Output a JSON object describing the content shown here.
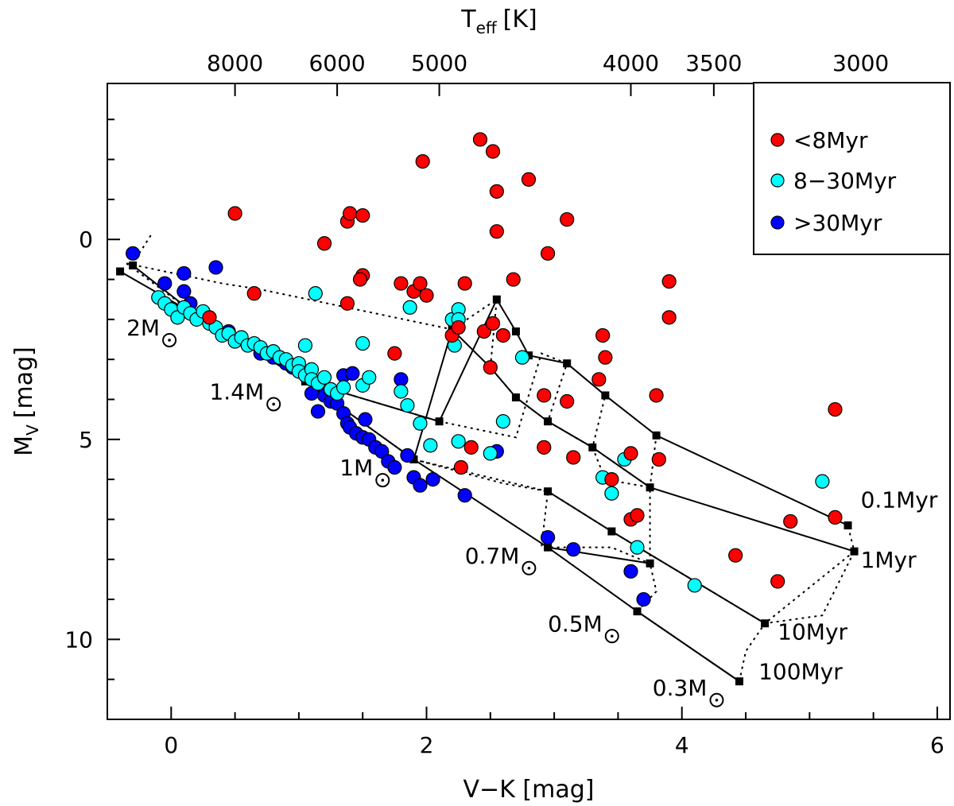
{
  "chart_data": {
    "type": "scatter",
    "title": "",
    "xlabel": "V−K [mag]",
    "ylabel_main": "M",
    "ylabel_sub": "V",
    "ylabel_unit": "[mag]",
    "top_xlabel_main": "T",
    "top_xlabel_sub": "eff",
    "top_xlabel_unit": "[K]",
    "xlim": [
      -0.5,
      6.1
    ],
    "ylim": [
      12.0,
      -3.9
    ],
    "x_ticks": [
      0,
      2,
      4,
      6
    ],
    "x_tick_labels": [
      "0",
      "2",
      "4",
      "6"
    ],
    "y_ticks": [
      0,
      5,
      10
    ],
    "y_tick_labels": [
      "0",
      "5",
      "10"
    ],
    "x_minor_step": 0.5,
    "y_minor_step": 1,
    "top_ticks": [
      {
        "label": "8000",
        "vk": 0.5
      },
      {
        "label": "6000",
        "vk": 1.3
      },
      {
        "label": "5000",
        "vk": 2.1
      },
      {
        "label": "4000",
        "vk": 3.6
      },
      {
        "label": "3500",
        "vk": 4.25
      },
      {
        "label": "3000",
        "vk": 5.4
      }
    ],
    "legend": {
      "position": "top-right",
      "entries": [
        {
          "label": "<8Myr",
          "color": "#ff0000"
        },
        {
          "label": "8−30Myr",
          "color": "#00ffff"
        },
        {
          "label": ">30Myr",
          "color": "#0000ff"
        }
      ]
    },
    "mass_tracks": [
      {
        "label": "2M",
        "points": [
          [
            -0.3,
            0.65
          ],
          [
            0.2,
            1.9
          ]
        ]
      },
      {
        "label": "1.4M",
        "points": [
          [
            1.05,
            3.55
          ],
          [
            2.1,
            4.55
          ],
          [
            2.55,
            1.5
          ],
          [
            2.7,
            2.3
          ],
          [
            2.8,
            2.9
          ],
          [
            3.1,
            3.1
          ],
          [
            3.4,
            3.9
          ],
          [
            3.8,
            4.9
          ],
          [
            5.3,
            7.15
          ]
        ]
      },
      {
        "label": "1M",
        "points": [
          [
            1.9,
            5.5
          ],
          [
            2.2,
            2.25
          ],
          [
            2.5,
            3.2
          ],
          [
            2.7,
            3.95
          ],
          [
            2.95,
            4.55
          ],
          [
            3.3,
            5.2
          ],
          [
            3.75,
            6.2
          ],
          [
            5.35,
            7.8
          ]
        ]
      },
      {
        "label": "0.7M",
        "points": [
          [
            2.95,
            6.3
          ],
          [
            3.45,
            7.3
          ],
          [
            4.65,
            9.6
          ]
        ]
      },
      {
        "label": "0.5M",
        "points": [
          [
            2.95,
            7.7
          ],
          [
            3.75,
            8.1
          ]
        ]
      },
      {
        "label": "0.3M",
        "points": [
          [
            3.65,
            9.3
          ],
          [
            4.45,
            11.05
          ]
        ]
      }
    ],
    "main_sequence_line": [
      [
        -0.4,
        0.8
      ],
      [
        0.2,
        1.9
      ],
      [
        1.05,
        3.55
      ],
      [
        1.9,
        5.5
      ],
      [
        2.95,
        7.7
      ],
      [
        3.65,
        9.3
      ],
      [
        4.45,
        11.05
      ]
    ],
    "isochrones": [
      {
        "label": "0.1Myr",
        "points": [
          [
            -0.35,
            0.6
          ],
          [
            0.2,
            1.9
          ],
          [
            1.05,
            3.55
          ],
          [
            1.9,
            5.5
          ],
          [
            2.95,
            6.3
          ],
          [
            3.45,
            7.3
          ],
          [
            4.65,
            9.6
          ],
          [
            5.35,
            7.8
          ],
          [
            5.3,
            7.15
          ]
        ]
      },
      {
        "label": "1Myr",
        "points": [
          [
            -0.25,
            0.35
          ],
          [
            -0.15,
            -0.15
          ]
        ]
      },
      {
        "label": "10Myr",
        "points": [
          [
            -0.35,
            0.6
          ],
          [
            0.4,
            1.1
          ],
          [
            0.7,
            1.25
          ],
          [
            2.2,
            2.25
          ],
          [
            2.55,
            1.5
          ],
          [
            2.5,
            3.2
          ],
          [
            2.7,
            3.95
          ],
          [
            2.95,
            4.55
          ],
          [
            3.3,
            5.2
          ],
          [
            3.75,
            6.2
          ],
          [
            3.8,
            4.9
          ]
        ]
      },
      {
        "label": "100Myr",
        "points": [
          [
            1.05,
            3.55
          ],
          [
            2.1,
            4.55
          ],
          [
            2.7,
            4.95
          ],
          [
            2.9,
            2.85
          ],
          [
            3.1,
            3.1
          ],
          [
            2.95,
            4.55
          ]
        ]
      },
      {
        "label": "ms_dotted_1",
        "points": [
          [
            1.9,
            5.5
          ],
          [
            2.6,
            6.1
          ],
          [
            2.95,
            6.3
          ],
          [
            2.9,
            7.7
          ],
          [
            3.45,
            7.7
          ],
          [
            3.75,
            8.1
          ]
        ]
      },
      {
        "label": "ms_dotted_2",
        "points": [
          [
            3.65,
            9.3
          ],
          [
            3.8,
            8.8
          ],
          [
            3.75,
            8.1
          ],
          [
            3.75,
            6.2
          ],
          [
            3.4,
            6.0
          ],
          [
            3.3,
            5.2
          ],
          [
            3.4,
            3.9
          ]
        ]
      },
      {
        "label": "ms_dotted_3",
        "points": [
          [
            4.45,
            11.05
          ],
          [
            4.5,
            10.3
          ],
          [
            4.65,
            9.6
          ],
          [
            5.1,
            9.4
          ],
          [
            5.35,
            7.8
          ]
        ]
      }
    ],
    "isochrone_labels": [
      {
        "label": "0.1Myr",
        "vk": 5.4,
        "mv": 6.7
      },
      {
        "label": "1Myr",
        "vk": 5.4,
        "mv": 8.2
      },
      {
        "label": "10Myr",
        "vk": 4.75,
        "mv": 10.0
      },
      {
        "label": "100Myr",
        "vk": 4.6,
        "mv": 11.0
      }
    ],
    "mass_labels": [
      {
        "label": "2M",
        "vk": -0.35,
        "mv": 2.4
      },
      {
        "label": "1.4M",
        "vk": 0.3,
        "mv": 4.0
      },
      {
        "label": "1M",
        "vk": 1.32,
        "mv": 5.9
      },
      {
        "label": "0.7M",
        "vk": 2.3,
        "mv": 8.1
      },
      {
        "label": "0.5M",
        "vk": 2.95,
        "mv": 9.8
      },
      {
        "label": "0.3M",
        "vk": 3.77,
        "mv": 11.4
      }
    ],
    "series": [
      {
        "name": "<8Myr",
        "color": "#ff0000",
        "points": [
          [
            0.5,
            -0.65
          ],
          [
            0.65,
            1.35
          ],
          [
            0.3,
            1.95
          ],
          [
            1.2,
            0.1
          ],
          [
            1.38,
            1.6
          ],
          [
            1.38,
            -0.45
          ],
          [
            1.4,
            -0.65
          ],
          [
            1.5,
            -0.6
          ],
          [
            1.5,
            0.9
          ],
          [
            1.48,
            1.0
          ],
          [
            1.75,
            2.85
          ],
          [
            1.8,
            1.1
          ],
          [
            1.9,
            1.3
          ],
          [
            1.95,
            1.1
          ],
          [
            1.97,
            -1.95
          ],
          [
            2.0,
            1.4
          ],
          [
            2.2,
            2.4
          ],
          [
            2.25,
            2.2
          ],
          [
            2.3,
            1.1
          ],
          [
            2.35,
            5.2
          ],
          [
            2.27,
            5.7
          ],
          [
            2.42,
            -2.5
          ],
          [
            2.45,
            2.3
          ],
          [
            2.5,
            3.2
          ],
          [
            2.52,
            2.1
          ],
          [
            2.52,
            -2.2
          ],
          [
            2.55,
            -1.2
          ],
          [
            2.55,
            -0.2
          ],
          [
            2.6,
            2.4
          ],
          [
            2.68,
            1.0
          ],
          [
            2.8,
            -1.5
          ],
          [
            2.92,
            3.9
          ],
          [
            2.92,
            5.2
          ],
          [
            2.95,
            0.35
          ],
          [
            3.1,
            -0.5
          ],
          [
            3.1,
            4.05
          ],
          [
            3.15,
            5.45
          ],
          [
            3.35,
            3.5
          ],
          [
            3.38,
            2.4
          ],
          [
            3.4,
            2.95
          ],
          [
            3.45,
            6.0
          ],
          [
            3.6,
            5.35
          ],
          [
            3.6,
            7.0
          ],
          [
            3.65,
            6.9
          ],
          [
            3.8,
            3.9
          ],
          [
            3.82,
            5.5
          ],
          [
            3.9,
            1.05
          ],
          [
            3.9,
            1.95
          ],
          [
            4.42,
            7.9
          ],
          [
            4.75,
            8.55
          ],
          [
            4.85,
            7.05
          ],
          [
            5.2,
            6.95
          ],
          [
            5.2,
            4.25
          ]
        ]
      },
      {
        "name": "8−30Myr",
        "color": "#00ffff",
        "points": [
          [
            -0.1,
            1.45
          ],
          [
            -0.05,
            1.6
          ],
          [
            0.0,
            1.75
          ],
          [
            0.05,
            1.95
          ],
          [
            0.1,
            1.7
          ],
          [
            0.15,
            1.85
          ],
          [
            0.2,
            2.0
          ],
          [
            0.25,
            1.8
          ],
          [
            0.3,
            2.1
          ],
          [
            0.35,
            2.2
          ],
          [
            0.4,
            2.4
          ],
          [
            0.45,
            2.35
          ],
          [
            0.5,
            2.55
          ],
          [
            0.55,
            2.45
          ],
          [
            0.6,
            2.65
          ],
          [
            0.65,
            2.6
          ],
          [
            0.7,
            2.7
          ],
          [
            0.75,
            2.85
          ],
          [
            0.8,
            2.8
          ],
          [
            0.85,
            2.95
          ],
          [
            0.9,
            3.0
          ],
          [
            0.95,
            3.15
          ],
          [
            1.0,
            3.1
          ],
          [
            1.0,
            3.3
          ],
          [
            1.05,
            3.4
          ],
          [
            1.1,
            3.25
          ],
          [
            1.1,
            3.5
          ],
          [
            1.15,
            3.6
          ],
          [
            1.2,
            3.45
          ],
          [
            1.25,
            3.75
          ],
          [
            1.3,
            3.85
          ],
          [
            1.35,
            3.7
          ],
          [
            1.05,
            2.65
          ],
          [
            1.13,
            1.35
          ],
          [
            1.5,
            2.6
          ],
          [
            1.5,
            3.65
          ],
          [
            1.55,
            3.45
          ],
          [
            1.8,
            3.8
          ],
          [
            1.85,
            4.15
          ],
          [
            1.87,
            1.7
          ],
          [
            1.95,
            4.6
          ],
          [
            2.03,
            5.15
          ],
          [
            2.2,
            2.0
          ],
          [
            2.22,
            2.65
          ],
          [
            2.25,
            1.75
          ],
          [
            2.25,
            2.0
          ],
          [
            2.25,
            5.05
          ],
          [
            2.5,
            5.35
          ],
          [
            2.6,
            4.55
          ],
          [
            2.75,
            2.95
          ],
          [
            3.38,
            5.95
          ],
          [
            3.45,
            6.35
          ],
          [
            3.55,
            5.5
          ],
          [
            3.65,
            7.7
          ],
          [
            4.1,
            8.65
          ],
          [
            5.1,
            6.05
          ]
        ]
      },
      {
        "name": ">30Myr",
        "color": "#0000ff",
        "points": [
          [
            -0.3,
            0.35
          ],
          [
            -0.05,
            1.1
          ],
          [
            0.1,
            0.85
          ],
          [
            0.1,
            1.3
          ],
          [
            0.15,
            1.6
          ],
          [
            0.35,
            0.7
          ],
          [
            0.45,
            2.3
          ],
          [
            0.7,
            2.85
          ],
          [
            0.8,
            2.95
          ],
          [
            0.9,
            3.1
          ],
          [
            0.95,
            3.2
          ],
          [
            1.1,
            3.85
          ],
          [
            1.15,
            4.3
          ],
          [
            1.2,
            3.9
          ],
          [
            1.25,
            4.05
          ],
          [
            1.3,
            4.1
          ],
          [
            1.35,
            4.35
          ],
          [
            1.35,
            3.4
          ],
          [
            1.38,
            4.6
          ],
          [
            1.4,
            4.7
          ],
          [
            1.42,
            3.35
          ],
          [
            1.45,
            4.85
          ],
          [
            1.5,
            4.95
          ],
          [
            1.52,
            4.5
          ],
          [
            1.55,
            5.0
          ],
          [
            1.6,
            5.2
          ],
          [
            1.65,
            5.3
          ],
          [
            1.7,
            5.55
          ],
          [
            1.75,
            5.7
          ],
          [
            1.8,
            3.5
          ],
          [
            1.85,
            5.4
          ],
          [
            1.9,
            5.95
          ],
          [
            1.95,
            6.15
          ],
          [
            2.05,
            6.0
          ],
          [
            2.3,
            6.4
          ],
          [
            2.55,
            5.3
          ],
          [
            2.95,
            7.45
          ],
          [
            3.15,
            7.75
          ],
          [
            3.6,
            8.3
          ],
          [
            3.7,
            9.0
          ]
        ]
      }
    ]
  }
}
